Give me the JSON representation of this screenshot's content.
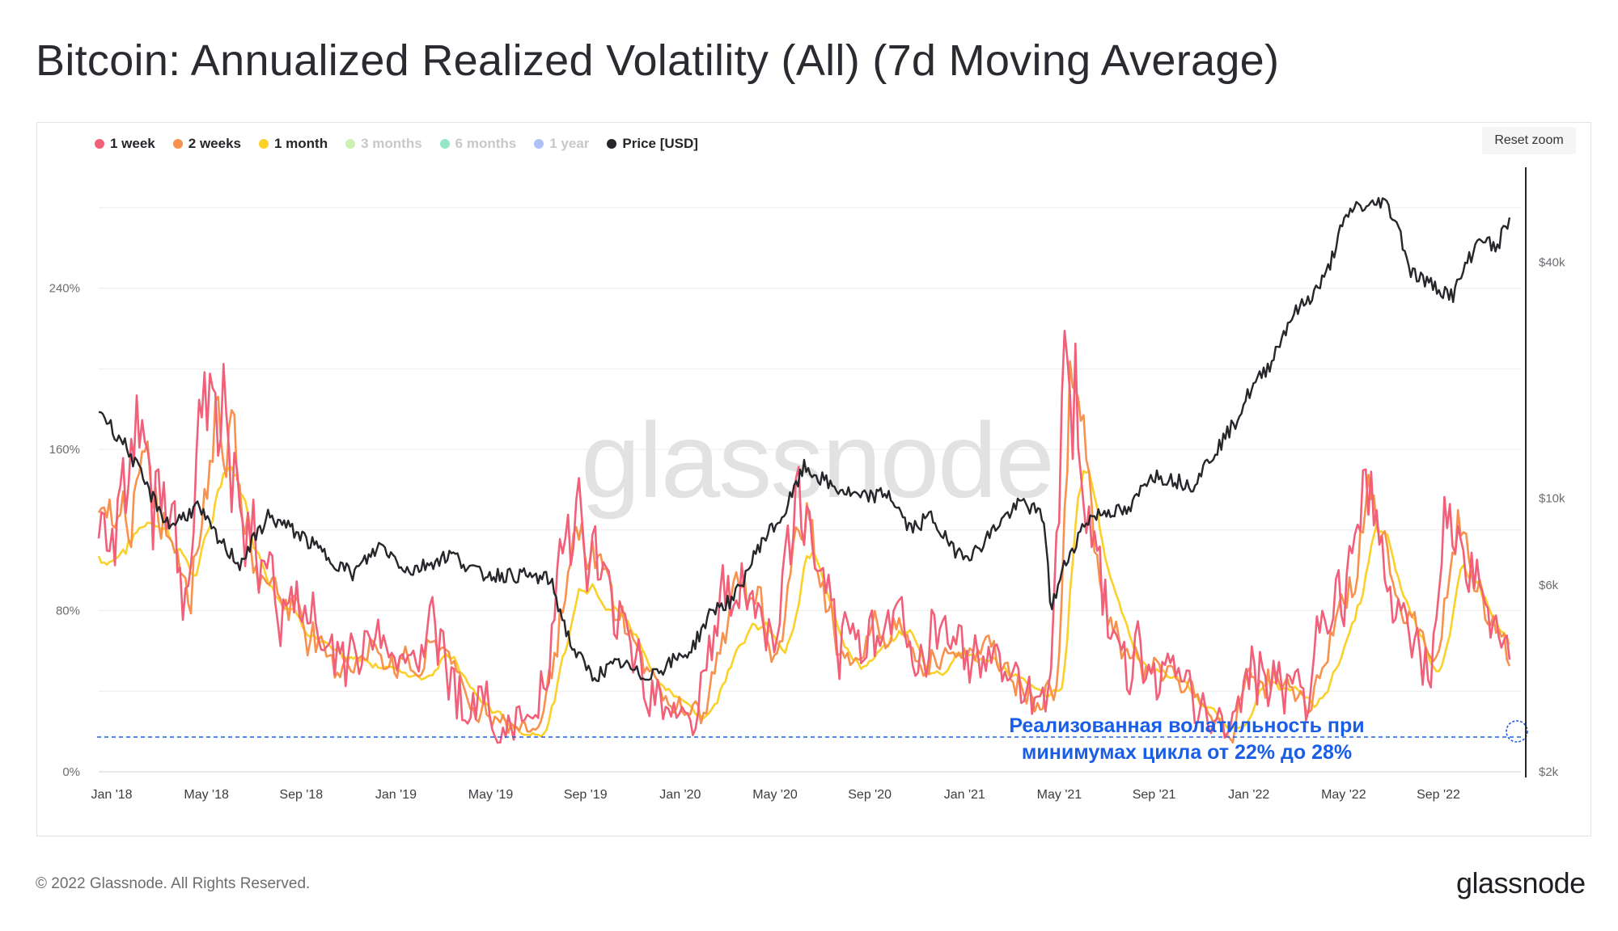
{
  "title": "Bitcoin: Annualized Realized Volatility (All) (7d Moving Average)",
  "reset_zoom": "Reset zoom",
  "legend": [
    {
      "label": "1 week",
      "color": "#f15f79",
      "active": true
    },
    {
      "label": "2 weeks",
      "color": "#f7914d",
      "active": true
    },
    {
      "label": "1 month",
      "color": "#fbd028",
      "active": true
    },
    {
      "label": "3 months",
      "color": "#a0e873",
      "active": false
    },
    {
      "label": "6 months",
      "color": "#3ed49a",
      "active": false
    },
    {
      "label": "1 year",
      "color": "#6c8ef0",
      "active": false
    },
    {
      "label": "Price [USD]",
      "color": "#26262b",
      "active": true
    }
  ],
  "watermark": "glassnode",
  "annotation": {
    "line1": "Реализованная волатильность при",
    "line2": "минимумах цикла от 22% до 28%",
    "color": "#1a5ee8"
  },
  "footer": {
    "copyright": "© 2022 Glassnode. All Rights Reserved.",
    "logo": "glassnode"
  },
  "chart_data": {
    "type": "line",
    "x_ticks": [
      "Jan '18",
      "May '18",
      "Sep '18",
      "Jan '19",
      "May '19",
      "Sep '19",
      "Jan '20",
      "May '20",
      "Sep '20",
      "Jan '21",
      "May '21",
      "Sep '21",
      "Jan '22",
      "May '22",
      "Sep '22"
    ],
    "y_left_ticks": [
      "0%",
      "80%",
      "160%",
      "240%"
    ],
    "y_left_range": [
      0,
      300
    ],
    "y_right_ticks": [
      "$2k",
      "$6k",
      "$10k",
      "$40k"
    ],
    "y_right_scale": "log",
    "y_right_range": [
      2000,
      70000
    ],
    "reference_line": {
      "value": 19,
      "style": "dashed",
      "color": "#1a5ee8"
    },
    "series": [
      {
        "name": "Price [USD]",
        "axis": "right",
        "color": "#26262b",
        "points": [
          [
            0.0,
            17000
          ],
          [
            0.01,
            15000
          ],
          [
            0.02,
            13500
          ],
          [
            0.035,
            10500
          ],
          [
            0.05,
            8500
          ],
          [
            0.07,
            9500
          ],
          [
            0.085,
            7800
          ],
          [
            0.1,
            6800
          ],
          [
            0.12,
            9000
          ],
          [
            0.14,
            8200
          ],
          [
            0.16,
            7200
          ],
          [
            0.18,
            6400
          ],
          [
            0.2,
            7600
          ],
          [
            0.22,
            6500
          ],
          [
            0.25,
            7200
          ],
          [
            0.27,
            6400
          ],
          [
            0.3,
            6350
          ],
          [
            0.32,
            6200
          ],
          [
            0.335,
            4200
          ],
          [
            0.35,
            3500
          ],
          [
            0.37,
            3800
          ],
          [
            0.385,
            3500
          ],
          [
            0.4,
            3700
          ],
          [
            0.42,
            4100
          ],
          [
            0.435,
            5200
          ],
          [
            0.45,
            5500
          ],
          [
            0.47,
            7800
          ],
          [
            0.485,
            9000
          ],
          [
            0.5,
            12000
          ],
          [
            0.52,
            10700
          ],
          [
            0.54,
            10000
          ],
          [
            0.56,
            10300
          ],
          [
            0.575,
            8300
          ],
          [
            0.59,
            9000
          ],
          [
            0.605,
            7400
          ],
          [
            0.62,
            7200
          ],
          [
            0.64,
            8800
          ],
          [
            0.655,
            9800
          ],
          [
            0.67,
            8900
          ],
          [
            0.675,
            5200
          ],
          [
            0.685,
            6800
          ],
          [
            0.7,
            8800
          ],
          [
            0.715,
            9300
          ],
          [
            0.73,
            9200
          ],
          [
            0.745,
            11500
          ],
          [
            0.76,
            11200
          ],
          [
            0.775,
            10800
          ],
          [
            0.79,
            13000
          ],
          [
            0.805,
            15500
          ],
          [
            0.815,
            18500
          ],
          [
            0.83,
            22000
          ],
          [
            0.845,
            29000
          ],
          [
            0.86,
            33000
          ],
          [
            0.87,
            37000
          ],
          [
            0.88,
            48000
          ],
          [
            0.89,
            56000
          ],
          [
            0.9,
            55000
          ],
          [
            0.91,
            58000
          ],
          [
            0.92,
            51000
          ],
          [
            0.93,
            38000
          ],
          [
            0.945,
            35000
          ],
          [
            0.96,
            33000
          ],
          [
            0.97,
            40000
          ],
          [
            0.98,
            47000
          ],
          [
            0.99,
            43000
          ],
          [
            1.0,
            52000
          ]
        ],
        "values_note_omitted": true
      },
      {
        "name": "1 week",
        "axis": "left",
        "color": "#f15f79"
      },
      {
        "name": "2 weeks",
        "axis": "left",
        "color": "#f7914d"
      },
      {
        "name": "1 month",
        "axis": "left",
        "color": "#fbd028"
      }
    ]
  }
}
